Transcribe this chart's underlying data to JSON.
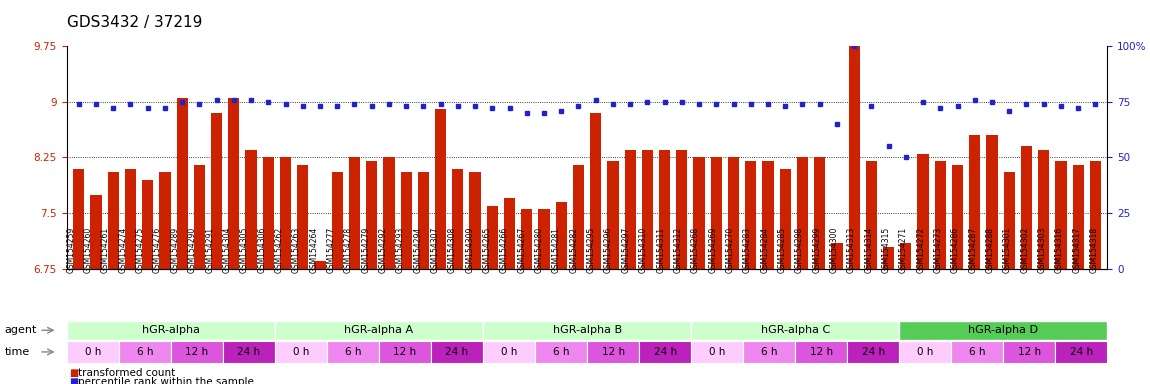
{
  "title": "GDS3432 / 37219",
  "samples": [
    "GSM154259",
    "GSM154260",
    "GSM154261",
    "GSM154274",
    "GSM154275",
    "GSM154276",
    "GSM154289",
    "GSM154290",
    "GSM154291",
    "GSM154304",
    "GSM154305",
    "GSM154306",
    "GSM154262",
    "GSM154263",
    "GSM154264",
    "GSM154277",
    "GSM154278",
    "GSM154279",
    "GSM154292",
    "GSM154293",
    "GSM154294",
    "GSM154307",
    "GSM154308",
    "GSM154309",
    "GSM154265",
    "GSM154266",
    "GSM154267",
    "GSM154280",
    "GSM154281",
    "GSM154282",
    "GSM154295",
    "GSM154296",
    "GSM154297",
    "GSM154310",
    "GSM154311",
    "GSM154312",
    "GSM154268",
    "GSM154269",
    "GSM154270",
    "GSM154283",
    "GSM154284",
    "GSM154285",
    "GSM154298",
    "GSM154299",
    "GSM154300",
    "GSM154313",
    "GSM154314",
    "GSM154315",
    "GSM154271",
    "GSM154272",
    "GSM154273",
    "GSM154286",
    "GSM154287",
    "GSM154288",
    "GSM154301",
    "GSM154302",
    "GSM154303",
    "GSM154316",
    "GSM154317",
    "GSM154318"
  ],
  "red_values": [
    8.1,
    7.75,
    8.05,
    8.1,
    7.95,
    8.05,
    9.05,
    8.15,
    8.85,
    9.05,
    8.35,
    8.25,
    8.25,
    8.15,
    6.85,
    8.05,
    8.25,
    8.2,
    8.25,
    8.05,
    8.05,
    8.9,
    8.1,
    8.05,
    7.6,
    7.7,
    7.55,
    7.55,
    7.65,
    8.15,
    8.85,
    8.2,
    8.35,
    8.35,
    8.35,
    8.35,
    8.25,
    8.25,
    8.25,
    8.2,
    8.2,
    8.1,
    8.25,
    8.25,
    7.1,
    9.8,
    8.2,
    7.05,
    7.1,
    8.3,
    8.2,
    8.15,
    8.55,
    8.55,
    8.05,
    8.4,
    8.35,
    8.2,
    8.15,
    8.2
  ],
  "blue_values": [
    74,
    74,
    72,
    74,
    72,
    72,
    75,
    74,
    76,
    76,
    76,
    75,
    74,
    73,
    73,
    73,
    74,
    73,
    74,
    73,
    73,
    74,
    73,
    73,
    72,
    72,
    70,
    70,
    71,
    73,
    76,
    74,
    74,
    75,
    75,
    75,
    74,
    74,
    74,
    74,
    74,
    73,
    74,
    74,
    65,
    100,
    73,
    55,
    50,
    75,
    72,
    73,
    76,
    75,
    71,
    74,
    74,
    73,
    72,
    74
  ],
  "agents": [
    "hGR-alpha",
    "hGR-alpha A",
    "hGR-alpha B",
    "hGR-alpha C",
    "hGR-alpha D"
  ],
  "agent_starts": [
    0,
    12,
    24,
    36,
    48
  ],
  "agent_ends": [
    12,
    24,
    36,
    48,
    60
  ],
  "agent_colors": [
    "#ccffcc",
    "#ccffcc",
    "#ccffcc",
    "#ccffcc",
    "#55cc55"
  ],
  "times": [
    "0 h",
    "6 h",
    "12 h",
    "24 h"
  ],
  "time_colors": [
    "#ffccff",
    "#ee88ee",
    "#dd55dd",
    "#bb22bb"
  ],
  "ylim_left": [
    6.75,
    9.75
  ],
  "yticks_left": [
    6.75,
    7.5,
    8.25,
    9.0,
    9.75
  ],
  "ytick_labels_left": [
    "6.75",
    "7.5",
    "8.25",
    "9",
    "9.75"
  ],
  "ylim_right": [
    0,
    100
  ],
  "yticks_right": [
    0,
    25,
    50,
    75,
    100
  ],
  "ytick_labels_right": [
    "0",
    "25",
    "50",
    "75",
    "100%"
  ],
  "bar_color": "#cc2200",
  "dot_color": "#2222cc",
  "grid_vals": [
    7.5,
    8.25,
    9.0
  ],
  "legend_red": "transformed count",
  "legend_blue": "percentile rank within the sample"
}
